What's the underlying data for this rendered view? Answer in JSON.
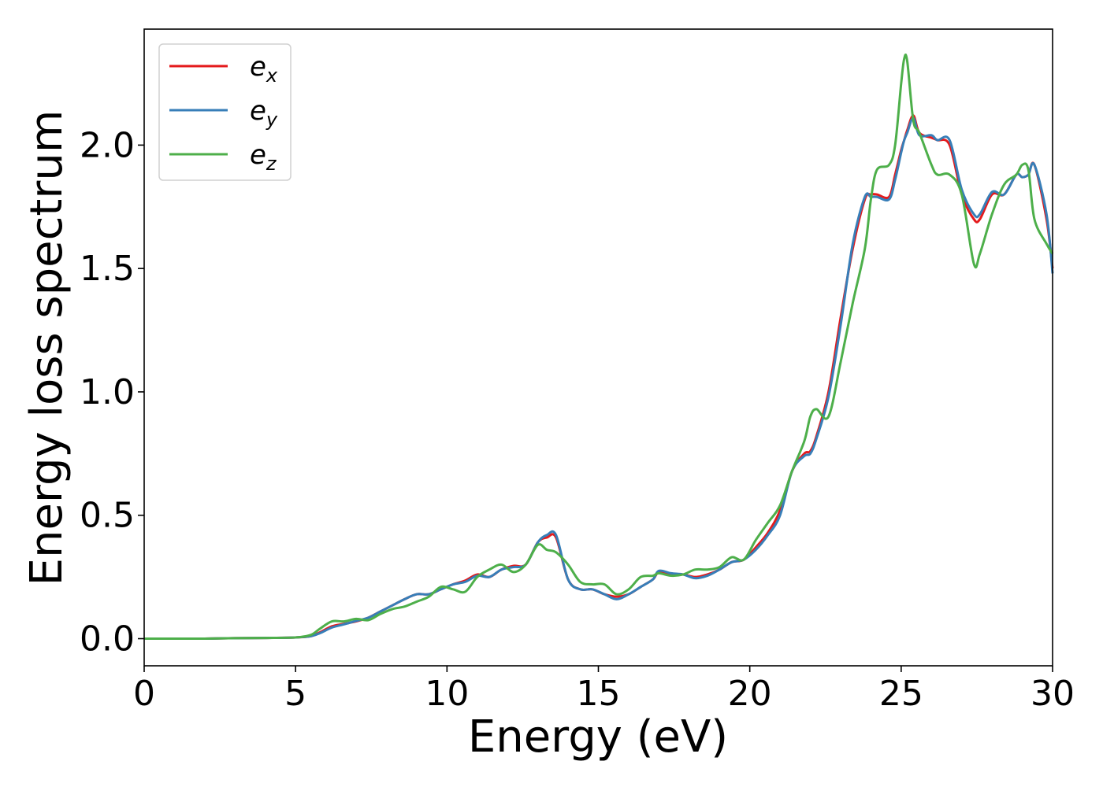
{
  "chart_data": {
    "type": "line",
    "title": "",
    "xlabel": "Energy (eV)",
    "ylabel": "Energy loss spectrum",
    "xlim": [
      0,
      30
    ],
    "ylim": [
      -0.11,
      2.47
    ],
    "xticks": [
      0,
      5,
      10,
      15,
      20,
      25,
      30
    ],
    "xtick_labels": [
      "0",
      "5",
      "10",
      "15",
      "20",
      "25",
      "30"
    ],
    "yticks": [
      0.0,
      0.5,
      1.0,
      1.5,
      2.0
    ],
    "ytick_labels": [
      "0.0",
      "0.5",
      "1.0",
      "1.5",
      "2.0"
    ],
    "grid": false,
    "legend_position": "top-left",
    "x": [
      0,
      1,
      2,
      3,
      4,
      5,
      5.5,
      5.8,
      6.2,
      6.6,
      7.0,
      7.4,
      7.8,
      8.2,
      8.6,
      9.0,
      9.4,
      9.8,
      10.2,
      10.6,
      11.0,
      11.4,
      11.8,
      12.2,
      12.6,
      13.0,
      13.3,
      13.6,
      14.0,
      14.4,
      14.8,
      15.2,
      15.6,
      16.0,
      16.4,
      16.8,
      17.0,
      17.4,
      17.8,
      18.2,
      18.6,
      19.0,
      19.4,
      19.8,
      20.2,
      20.6,
      21.0,
      21.4,
      21.8,
      22.0,
      22.2,
      22.6,
      23.0,
      23.4,
      23.8,
      24.0,
      24.2,
      24.6,
      24.8,
      25.0,
      25.1,
      25.2,
      25.4,
      25.6,
      26.0,
      26.2,
      26.6,
      27.0,
      27.4,
      27.6,
      28.0,
      28.4,
      28.8,
      29.0,
      29.2,
      29.4,
      29.8,
      30.0
    ],
    "series": [
      {
        "name": "e_x",
        "color": "#e41a1c",
        "values": [
          0.0,
          0.0,
          0.0,
          0.002,
          0.003,
          0.005,
          0.01,
          0.025,
          0.05,
          0.06,
          0.07,
          0.085,
          0.11,
          0.135,
          0.16,
          0.18,
          0.18,
          0.2,
          0.22,
          0.235,
          0.26,
          0.25,
          0.28,
          0.295,
          0.3,
          0.39,
          0.41,
          0.41,
          0.24,
          0.2,
          0.2,
          0.18,
          0.17,
          0.18,
          0.21,
          0.24,
          0.27,
          0.26,
          0.26,
          0.25,
          0.26,
          0.28,
          0.31,
          0.32,
          0.37,
          0.43,
          0.52,
          0.68,
          0.75,
          0.76,
          0.82,
          1.0,
          1.3,
          1.58,
          1.78,
          1.8,
          1.8,
          1.79,
          1.88,
          1.98,
          2.02,
          2.06,
          2.12,
          2.05,
          2.03,
          2.02,
          2.0,
          1.8,
          1.7,
          1.7,
          1.8,
          1.8,
          1.88,
          1.87,
          1.88,
          1.92,
          1.7,
          1.5
        ]
      },
      {
        "name": "e_y",
        "color": "#377eb8",
        "values": [
          0.0,
          0.0,
          0.0,
          0.002,
          0.003,
          0.005,
          0.01,
          0.022,
          0.045,
          0.058,
          0.072,
          0.085,
          0.11,
          0.135,
          0.16,
          0.18,
          0.18,
          0.2,
          0.22,
          0.23,
          0.255,
          0.25,
          0.28,
          0.29,
          0.3,
          0.39,
          0.42,
          0.42,
          0.24,
          0.2,
          0.2,
          0.18,
          0.16,
          0.18,
          0.21,
          0.24,
          0.275,
          0.265,
          0.26,
          0.245,
          0.255,
          0.28,
          0.31,
          0.32,
          0.36,
          0.42,
          0.5,
          0.68,
          0.74,
          0.75,
          0.81,
          0.98,
          1.27,
          1.6,
          1.79,
          1.79,
          1.79,
          1.78,
          1.86,
          1.97,
          2.02,
          2.05,
          2.11,
          2.04,
          2.04,
          2.02,
          2.02,
          1.82,
          1.72,
          1.72,
          1.81,
          1.8,
          1.88,
          1.87,
          1.88,
          1.92,
          1.72,
          1.48
        ]
      },
      {
        "name": "e_z",
        "color": "#4daf4a",
        "values": [
          0.0,
          0.0,
          0.0,
          0.002,
          0.003,
          0.005,
          0.015,
          0.04,
          0.07,
          0.07,
          0.08,
          0.075,
          0.1,
          0.12,
          0.13,
          0.15,
          0.17,
          0.21,
          0.2,
          0.19,
          0.25,
          0.28,
          0.3,
          0.27,
          0.3,
          0.38,
          0.36,
          0.35,
          0.3,
          0.23,
          0.22,
          0.22,
          0.18,
          0.2,
          0.25,
          0.255,
          0.265,
          0.255,
          0.26,
          0.28,
          0.28,
          0.29,
          0.33,
          0.32,
          0.4,
          0.47,
          0.54,
          0.68,
          0.8,
          0.9,
          0.93,
          0.9,
          1.12,
          1.36,
          1.58,
          1.78,
          1.9,
          1.92,
          2.0,
          2.25,
          2.35,
          2.34,
          2.1,
          2.05,
          1.92,
          1.88,
          1.88,
          1.8,
          1.52,
          1.56,
          1.72,
          1.84,
          1.88,
          1.92,
          1.9,
          1.7,
          1.6,
          1.56
        ]
      }
    ],
    "legend": [
      {
        "base": "e",
        "sub": "x",
        "color": "#e41a1c"
      },
      {
        "base": "e",
        "sub": "y",
        "color": "#377eb8"
      },
      {
        "base": "e",
        "sub": "z",
        "color": "#4daf4a"
      }
    ]
  }
}
